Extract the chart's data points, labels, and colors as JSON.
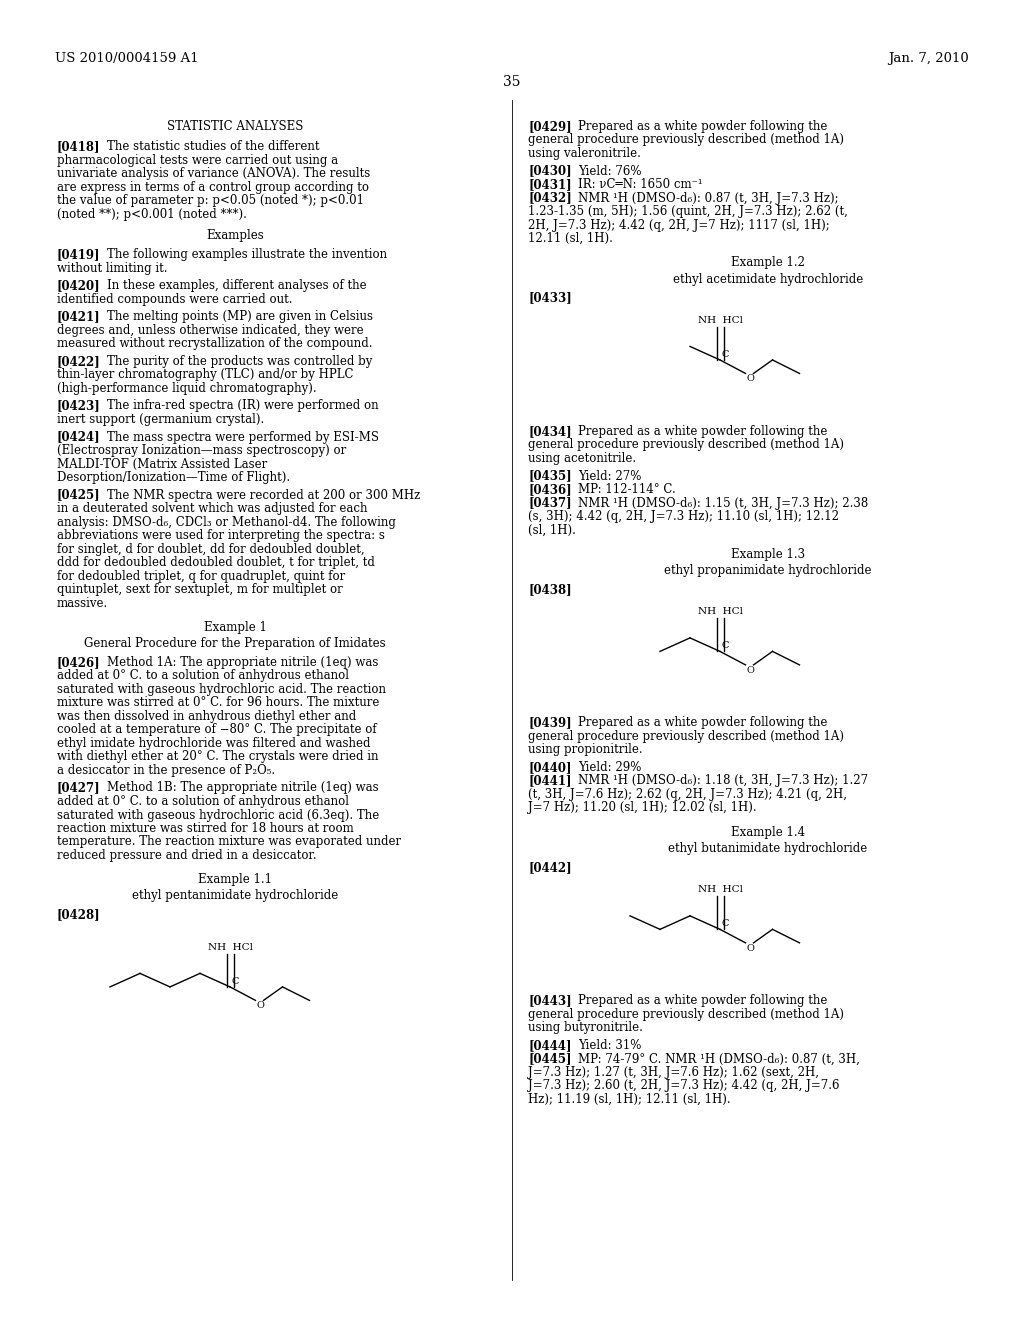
{
  "bg_color": "#ffffff",
  "header_left": "US 2010/0004159 A1",
  "header_right": "Jan. 7, 2010",
  "page_number": "35",
  "body_font_size": 8.5,
  "tag_font_size": 8.5,
  "heading_font_size": 8.5
}
